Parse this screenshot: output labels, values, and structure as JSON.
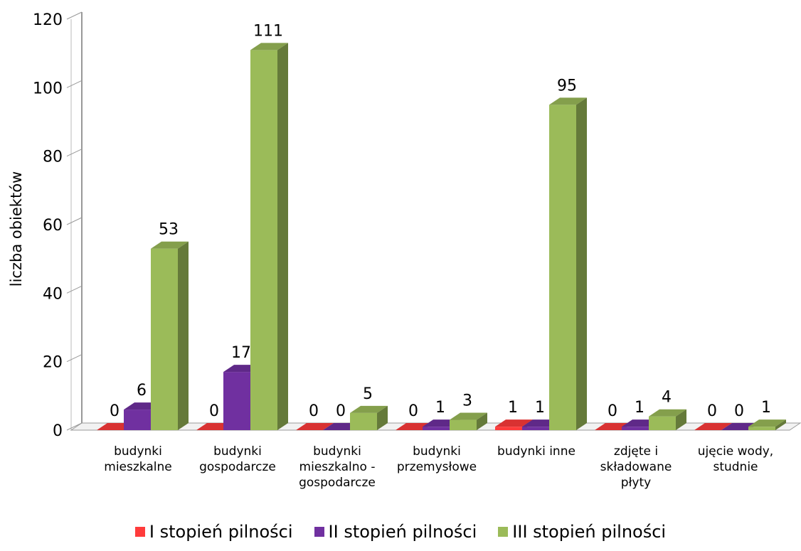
{
  "chart_data": {
    "type": "bar",
    "ylabel": "liczba obiektów",
    "xlabel": "",
    "ylim": [
      0,
      120
    ],
    "yticks": [
      "0",
      "20",
      "40",
      "60",
      "80",
      "100",
      "120"
    ],
    "grid": false,
    "legend_position": "bottom",
    "categories": [
      [
        "budynki",
        "mieszkalne"
      ],
      [
        "budynki",
        "gospodarcze"
      ],
      [
        "budynki",
        "mieszkalno -",
        "gospodarcze"
      ],
      [
        "budynki",
        "przemysłowe"
      ],
      [
        "budynki inne"
      ],
      [
        "zdjęte i",
        "składowane",
        "płyty"
      ],
      [
        "ujęcie wody,",
        "studnie"
      ]
    ],
    "series": [
      {
        "name": "I stopień pilności",
        "color": "#ff3b3b",
        "values": [
          0,
          0,
          0,
          0,
          1,
          0,
          0
        ]
      },
      {
        "name": "II stopień pilności",
        "color": "#7030a0",
        "values": [
          6,
          17,
          0,
          1,
          1,
          1,
          0
        ]
      },
      {
        "name": "III stopień pilności",
        "color": "#9bbb59",
        "values": [
          53,
          111,
          5,
          3,
          95,
          4,
          1
        ]
      }
    ]
  }
}
